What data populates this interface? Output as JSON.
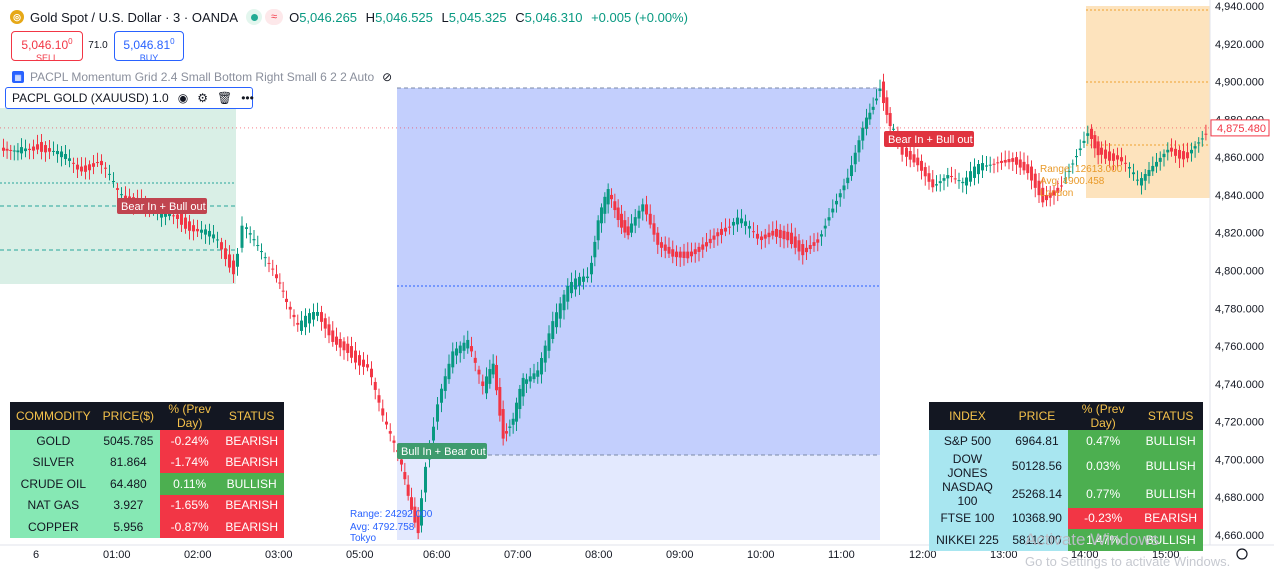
{
  "header": {
    "symbol_icon": "gold-coin-icon",
    "title": "Gold Spot / U.S. Dollar · 3 · OANDA",
    "ohlc": [
      {
        "k": "O",
        "v": "5,046.265"
      },
      {
        "k": "H",
        "v": "5,046.525"
      },
      {
        "k": "L",
        "v": "5,045.325"
      },
      {
        "k": "C",
        "v": "5,046.310"
      }
    ],
    "change": "+0.005 (+0.00%)"
  },
  "trade": {
    "sell_price": "5,046.10",
    "sell_sup": "0",
    "sell_label": "SELL",
    "spread": "71.0",
    "buy_price": "5,046.81",
    "buy_sup": "0",
    "buy_label": "BUY"
  },
  "indicators": {
    "line1": "PACPL Momentum Grid 2.4 Small Bottom Right Small 6 2 2 Auto",
    "line2": "PACPL GOLD (XAUUSD) 1.0"
  },
  "price_axis": {
    "labels": [
      "4,940.000",
      "4,920.000",
      "4,900.000",
      "4,880.000",
      "4,860.000",
      "4,840.000",
      "4,820.000",
      "4,800.000",
      "4,780.000",
      "4,760.000",
      "4,740.000",
      "4,720.000",
      "4,700.000",
      "4,680.000",
      "4,660.000"
    ],
    "current": "4,875.480"
  },
  "time_axis": {
    "labels": [
      "6",
      "01:00",
      "02:00",
      "03:00",
      "05:00",
      "06:00",
      "07:00",
      "08:00",
      "09:00",
      "10:00",
      "11:00",
      "12:00",
      "13:00",
      "14:00",
      "15:00"
    ]
  },
  "annotations": {
    "signal_1": "Bear In + Bull out",
    "signal_2": "Bull In + Bear out",
    "signal_3": "Bear In + Bull out",
    "tokyo_range": "Range: 24292.000",
    "tokyo_avg": "Avg: 4792.758",
    "tokyo_label": "Tokyo",
    "london_range": "Range: 12613.000",
    "london_avg": "Avg: 4900.458",
    "london_label": "London"
  },
  "commodity_table": {
    "headers": [
      "COMMODITY",
      "PRICE($)",
      "% (Prev Day)",
      "STATUS"
    ],
    "rows": [
      [
        "GOLD",
        "5045.785",
        "-0.24%",
        "BEARISH"
      ],
      [
        "SILVER",
        "81.864",
        "-1.74%",
        "BEARISH"
      ],
      [
        "CRUDE OIL",
        "64.480",
        "0.11%",
        "BULLISH"
      ],
      [
        "NAT GAS",
        "3.927",
        "-1.65%",
        "BEARISH"
      ],
      [
        "COPPER",
        "5.956",
        "-0.87%",
        "BEARISH"
      ]
    ]
  },
  "index_table": {
    "headers": [
      "INDEX",
      "PRICE",
      "% (Prev Day)",
      "STATUS"
    ],
    "rows": [
      [
        "S&P 500",
        "6964.81",
        "0.47%",
        "BULLISH"
      ],
      [
        "DOW JONES",
        "50128.56",
        "0.03%",
        "BULLISH"
      ],
      [
        "NASDAQ 100",
        "25268.14",
        "0.77%",
        "BULLISH"
      ],
      [
        "FTSE 100",
        "10368.90",
        "-0.23%",
        "BEARISH"
      ],
      [
        "NIKKEI 225",
        "58112.00",
        "1.47%",
        "BULLISH"
      ]
    ]
  },
  "watermark": {
    "line1": "Activate Windows",
    "line2": "Go to Settings to activate Windows."
  },
  "colors": {
    "bull": "#089981",
    "bear": "#f23645",
    "tokyo_zone": "#c3cffd",
    "london_zone": "#fde3bd",
    "asia_zone": "#d9efe6"
  }
}
